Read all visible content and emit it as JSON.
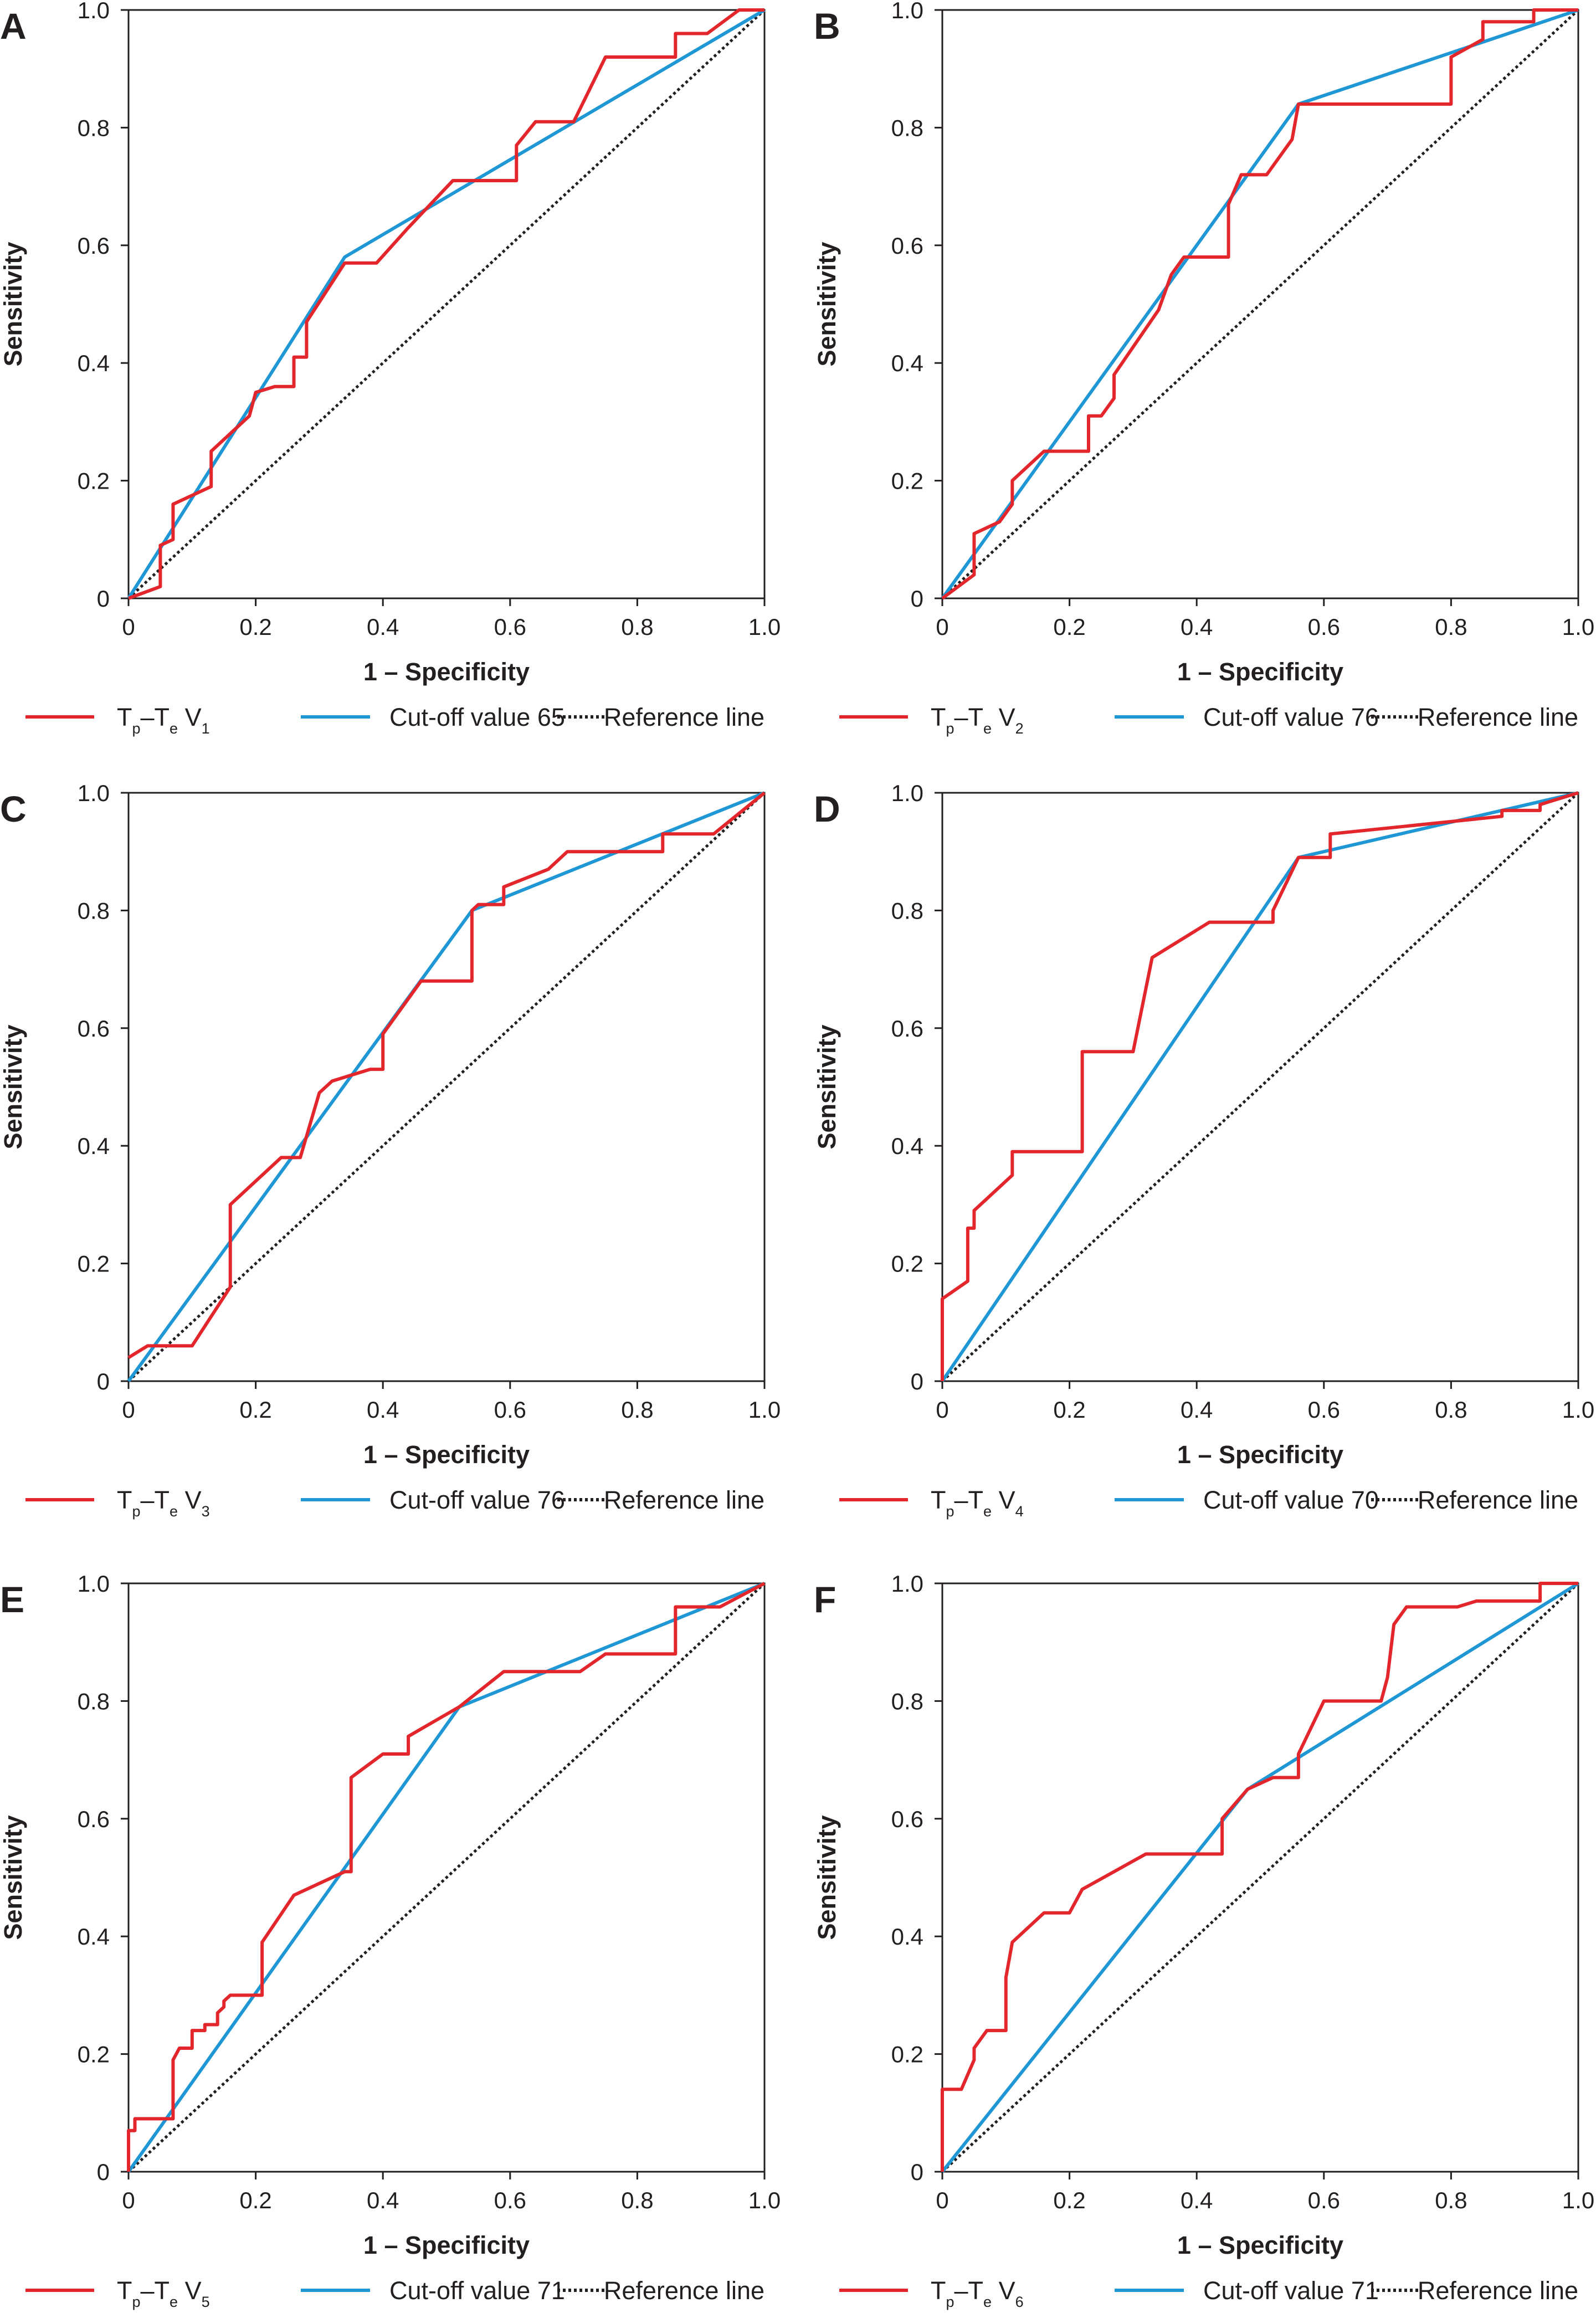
{
  "colors": {
    "roc": "#e3262c",
    "cutoff": "#1f97d4",
    "reference": "#231f20",
    "axis": "#231f20"
  },
  "chart_data": [
    {
      "panel": "A",
      "type": "line",
      "xlabel": "1 – Specificity",
      "ylabel": "Sensitivity",
      "xlim": [
        0,
        1
      ],
      "ylim": [
        0,
        1
      ],
      "xticks": [
        "0",
        "0.2",
        "0.4",
        "0.6",
        "0.8",
        "1.0"
      ],
      "yticks": [
        "0",
        "0.2",
        "0.4",
        "0.6",
        "0.8",
        "1.0"
      ],
      "legend": {
        "roc_main": "T",
        "roc_sub1": "p",
        "roc_mid": "–T",
        "roc_sub2": "e",
        "roc_lead": " V",
        "roc_num": "1",
        "cutoff": "Cut-off value 65",
        "reference": "Reference line"
      },
      "series": [
        {
          "name": "Tp–Te V1",
          "points": [
            [
              0,
              0
            ],
            [
              0.05,
              0.02
            ],
            [
              0.05,
              0.09
            ],
            [
              0.07,
              0.1
            ],
            [
              0.07,
              0.16
            ],
            [
              0.13,
              0.19
            ],
            [
              0.13,
              0.25
            ],
            [
              0.19,
              0.31
            ],
            [
              0.2,
              0.35
            ],
            [
              0.23,
              0.36
            ],
            [
              0.26,
              0.36
            ],
            [
              0.26,
              0.41
            ],
            [
              0.28,
              0.41
            ],
            [
              0.28,
              0.47
            ],
            [
              0.34,
              0.57
            ],
            [
              0.39,
              0.57
            ],
            [
              0.44,
              0.63
            ],
            [
              0.51,
              0.71
            ],
            [
              0.61,
              0.71
            ],
            [
              0.61,
              0.77
            ],
            [
              0.64,
              0.81
            ],
            [
              0.7,
              0.81
            ],
            [
              0.75,
              0.92
            ],
            [
              0.86,
              0.92
            ],
            [
              0.86,
              0.96
            ],
            [
              0.91,
              0.96
            ],
            [
              0.96,
              1
            ],
            [
              1,
              1
            ]
          ]
        },
        {
          "name": "Cut-off value 65",
          "points": [
            [
              0,
              0
            ],
            [
              0.34,
              0.58
            ],
            [
              1,
              1
            ]
          ]
        },
        {
          "name": "Reference line",
          "points": [
            [
              0,
              0
            ],
            [
              1,
              1
            ]
          ]
        }
      ]
    },
    {
      "panel": "B",
      "type": "line",
      "xlabel": "1 – Specificity",
      "ylabel": "Sensitivity",
      "xlim": [
        0,
        1
      ],
      "ylim": [
        0,
        1
      ],
      "xticks": [
        "0",
        "0.2",
        "0.4",
        "0.6",
        "0.8",
        "1.0"
      ],
      "yticks": [
        "0",
        "0.2",
        "0.4",
        "0.6",
        "0.8",
        "1.0"
      ],
      "legend": {
        "roc_main": "T",
        "roc_sub1": "p",
        "roc_mid": "–T",
        "roc_sub2": "e",
        "roc_lead": " V",
        "roc_num": "2",
        "cutoff": "Cut-off value 76",
        "reference": "Reference line"
      },
      "series": [
        {
          "name": "Tp–Te V2",
          "points": [
            [
              0,
              0
            ],
            [
              0.05,
              0.04
            ],
            [
              0.05,
              0.11
            ],
            [
              0.09,
              0.13
            ],
            [
              0.11,
              0.16
            ],
            [
              0.11,
              0.2
            ],
            [
              0.16,
              0.25
            ],
            [
              0.23,
              0.25
            ],
            [
              0.23,
              0.31
            ],
            [
              0.25,
              0.31
            ],
            [
              0.27,
              0.34
            ],
            [
              0.27,
              0.38
            ],
            [
              0.34,
              0.49
            ],
            [
              0.36,
              0.55
            ],
            [
              0.38,
              0.58
            ],
            [
              0.45,
              0.58
            ],
            [
              0.45,
              0.67
            ],
            [
              0.47,
              0.72
            ],
            [
              0.51,
              0.72
            ],
            [
              0.55,
              0.78
            ],
            [
              0.56,
              0.84
            ],
            [
              0.8,
              0.84
            ],
            [
              0.8,
              0.92
            ],
            [
              0.85,
              0.95
            ],
            [
              0.85,
              0.98
            ],
            [
              0.93,
              0.98
            ],
            [
              0.93,
              1
            ],
            [
              1,
              1
            ]
          ]
        },
        {
          "name": "Cut-off value 76",
          "points": [
            [
              0,
              0
            ],
            [
              0.56,
              0.84
            ],
            [
              1,
              1
            ]
          ]
        },
        {
          "name": "Reference line",
          "points": [
            [
              0,
              0
            ],
            [
              1,
              1
            ]
          ]
        }
      ]
    },
    {
      "panel": "C",
      "type": "line",
      "xlabel": "1 – Specificity",
      "ylabel": "Sensitivity",
      "xlim": [
        0,
        1
      ],
      "ylim": [
        0,
        1
      ],
      "xticks": [
        "0",
        "0.2",
        "0.4",
        "0.6",
        "0.8",
        "1.0"
      ],
      "yticks": [
        "0",
        "0.2",
        "0.4",
        "0.6",
        "0.8",
        "1.0"
      ],
      "legend": {
        "roc_main": "T",
        "roc_sub1": "p",
        "roc_mid": "–T",
        "roc_sub2": "e",
        "roc_lead": " V",
        "roc_num": "3",
        "cutoff": "Cut-off value 76",
        "reference": "Reference line"
      },
      "series": [
        {
          "name": "Tp–Te V3",
          "points": [
            [
              0,
              0.04
            ],
            [
              0.03,
              0.06
            ],
            [
              0.1,
              0.06
            ],
            [
              0.16,
              0.16
            ],
            [
              0.16,
              0.3
            ],
            [
              0.24,
              0.38
            ],
            [
              0.27,
              0.38
            ],
            [
              0.3,
              0.49
            ],
            [
              0.32,
              0.51
            ],
            [
              0.38,
              0.53
            ],
            [
              0.4,
              0.53
            ],
            [
              0.4,
              0.59
            ],
            [
              0.46,
              0.68
            ],
            [
              0.54,
              0.68
            ],
            [
              0.54,
              0.8
            ],
            [
              0.55,
              0.81
            ],
            [
              0.59,
              0.81
            ],
            [
              0.59,
              0.84
            ],
            [
              0.66,
              0.87
            ],
            [
              0.69,
              0.9
            ],
            [
              0.84,
              0.9
            ],
            [
              0.84,
              0.93
            ],
            [
              0.92,
              0.93
            ],
            [
              1,
              1
            ]
          ]
        },
        {
          "name": "Cut-off value 76",
          "points": [
            [
              0,
              0
            ],
            [
              0.54,
              0.8
            ],
            [
              1,
              1
            ]
          ]
        },
        {
          "name": "Reference line",
          "points": [
            [
              0,
              0
            ],
            [
              1,
              1
            ]
          ]
        }
      ]
    },
    {
      "panel": "D",
      "type": "line",
      "xlabel": "1 – Specificity",
      "ylabel": "Sensitivity",
      "xlim": [
        0,
        1
      ],
      "ylim": [
        0,
        1
      ],
      "xticks": [
        "0",
        "0.2",
        "0.4",
        "0.6",
        "0.8",
        "1.0"
      ],
      "yticks": [
        "0",
        "0.2",
        "0.4",
        "0.6",
        "0.8",
        "1.0"
      ],
      "legend": {
        "roc_main": "T",
        "roc_sub1": "p",
        "roc_mid": "–T",
        "roc_sub2": "e",
        "roc_lead": " V",
        "roc_num": "4",
        "cutoff": "Cut-off value 70",
        "reference": "Reference line"
      },
      "series": [
        {
          "name": "Tp–Te V4",
          "points": [
            [
              0,
              0
            ],
            [
              0,
              0.14
            ],
            [
              0.04,
              0.17
            ],
            [
              0.04,
              0.26
            ],
            [
              0.05,
              0.26
            ],
            [
              0.05,
              0.29
            ],
            [
              0.11,
              0.35
            ],
            [
              0.11,
              0.39
            ],
            [
              0.22,
              0.39
            ],
            [
              0.22,
              0.56
            ],
            [
              0.3,
              0.56
            ],
            [
              0.33,
              0.72
            ],
            [
              0.42,
              0.78
            ],
            [
              0.52,
              0.78
            ],
            [
              0.52,
              0.8
            ],
            [
              0.56,
              0.89
            ],
            [
              0.61,
              0.89
            ],
            [
              0.61,
              0.93
            ],
            [
              0.88,
              0.96
            ],
            [
              0.88,
              0.97
            ],
            [
              0.94,
              0.97
            ],
            [
              0.94,
              0.98
            ],
            [
              1,
              1
            ]
          ]
        },
        {
          "name": "Cut-off value 70",
          "points": [
            [
              0,
              0
            ],
            [
              0.56,
              0.89
            ],
            [
              1,
              1
            ]
          ]
        },
        {
          "name": "Reference line",
          "points": [
            [
              0,
              0
            ],
            [
              1,
              1
            ]
          ]
        }
      ]
    },
    {
      "panel": "E",
      "type": "line",
      "xlabel": "1 – Specificity",
      "ylabel": "Sensitivity",
      "xlim": [
        0,
        1
      ],
      "ylim": [
        0,
        1
      ],
      "xticks": [
        "0",
        "0.2",
        "0.4",
        "0.6",
        "0.8",
        "1.0"
      ],
      "yticks": [
        "0",
        "0.2",
        "0.4",
        "0.6",
        "0.8",
        "1.0"
      ],
      "legend": {
        "roc_main": "T",
        "roc_sub1": "p",
        "roc_mid": "–T",
        "roc_sub2": "e",
        "roc_lead": " V",
        "roc_num": "5",
        "cutoff": "Cut-off value 71",
        "reference": "Reference line"
      },
      "series": [
        {
          "name": "Tp–Te V5",
          "points": [
            [
              0,
              0
            ],
            [
              0,
              0.07
            ],
            [
              0.01,
              0.07
            ],
            [
              0.01,
              0.09
            ],
            [
              0.07,
              0.09
            ],
            [
              0.07,
              0.19
            ],
            [
              0.08,
              0.21
            ],
            [
              0.1,
              0.21
            ],
            [
              0.1,
              0.24
            ],
            [
              0.12,
              0.24
            ],
            [
              0.12,
              0.25
            ],
            [
              0.14,
              0.25
            ],
            [
              0.14,
              0.27
            ],
            [
              0.15,
              0.28
            ],
            [
              0.15,
              0.29
            ],
            [
              0.16,
              0.3
            ],
            [
              0.21,
              0.3
            ],
            [
              0.21,
              0.39
            ],
            [
              0.26,
              0.47
            ],
            [
              0.34,
              0.51
            ],
            [
              0.35,
              0.51
            ],
            [
              0.35,
              0.67
            ],
            [
              0.4,
              0.71
            ],
            [
              0.44,
              0.71
            ],
            [
              0.44,
              0.74
            ],
            [
              0.52,
              0.79
            ],
            [
              0.59,
              0.85
            ],
            [
              0.71,
              0.85
            ],
            [
              0.75,
              0.88
            ],
            [
              0.86,
              0.88
            ],
            [
              0.86,
              0.96
            ],
            [
              0.93,
              0.96
            ],
            [
              1,
              1
            ]
          ]
        },
        {
          "name": "Cut-off value 71",
          "points": [
            [
              0,
              0
            ],
            [
              0.52,
              0.79
            ],
            [
              1,
              1
            ]
          ]
        },
        {
          "name": "Reference line",
          "points": [
            [
              0,
              0
            ],
            [
              1,
              1
            ]
          ]
        }
      ]
    },
    {
      "panel": "F",
      "type": "line",
      "xlabel": "1 – Specificity",
      "ylabel": "Sensitivity",
      "xlim": [
        0,
        1
      ],
      "ylim": [
        0,
        1
      ],
      "xticks": [
        "0",
        "0.2",
        "0.4",
        "0.6",
        "0.8",
        "1.0"
      ],
      "yticks": [
        "0",
        "0.2",
        "0.4",
        "0.6",
        "0.8",
        "1.0"
      ],
      "legend": {
        "roc_main": "T",
        "roc_sub1": "p",
        "roc_mid": "–T",
        "roc_sub2": "e",
        "roc_lead": " V",
        "roc_num": "6",
        "cutoff": "Cut-off value 71",
        "reference": "Reference line"
      },
      "series": [
        {
          "name": "Tp–Te V6",
          "points": [
            [
              0,
              0
            ],
            [
              0,
              0.14
            ],
            [
              0.03,
              0.14
            ],
            [
              0.05,
              0.19
            ],
            [
              0.05,
              0.21
            ],
            [
              0.07,
              0.24
            ],
            [
              0.1,
              0.24
            ],
            [
              0.1,
              0.33
            ],
            [
              0.11,
              0.39
            ],
            [
              0.16,
              0.44
            ],
            [
              0.2,
              0.44
            ],
            [
              0.22,
              0.48
            ],
            [
              0.32,
              0.54
            ],
            [
              0.44,
              0.54
            ],
            [
              0.44,
              0.6
            ],
            [
              0.48,
              0.65
            ],
            [
              0.52,
              0.67
            ],
            [
              0.56,
              0.67
            ],
            [
              0.56,
              0.71
            ],
            [
              0.6,
              0.8
            ],
            [
              0.69,
              0.8
            ],
            [
              0.7,
              0.84
            ],
            [
              0.71,
              0.93
            ],
            [
              0.73,
              0.96
            ],
            [
              0.81,
              0.96
            ],
            [
              0.84,
              0.97
            ],
            [
              0.94,
              0.97
            ],
            [
              0.94,
              1
            ],
            [
              1,
              1
            ]
          ]
        },
        {
          "name": "Cut-off value 71",
          "points": [
            [
              0,
              0
            ],
            [
              0.48,
              0.65
            ],
            [
              1,
              1
            ]
          ]
        },
        {
          "name": "Reference line",
          "points": [
            [
              0,
              0
            ],
            [
              1,
              1
            ]
          ]
        }
      ]
    }
  ]
}
